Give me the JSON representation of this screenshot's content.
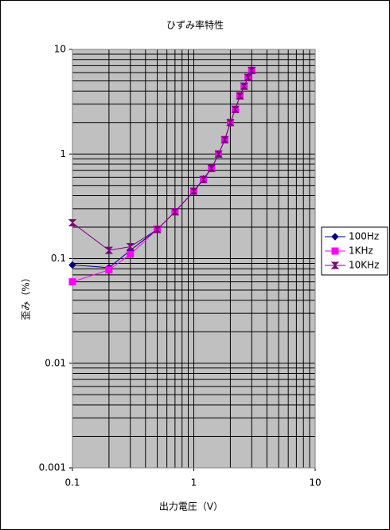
{
  "chart_data": {
    "type": "line",
    "title": "ひずみ率特性",
    "xlabel": "出力電圧（V）",
    "ylabel": "歪み（%）",
    "x": [
      0.1,
      0.2,
      0.3,
      0.5,
      0.7,
      1.0,
      1.2,
      1.4,
      1.6,
      1.8,
      2.0,
      2.2,
      2.4,
      2.6,
      2.8,
      3.0
    ],
    "series": [
      {
        "name": "100Hz",
        "color": "#000080",
        "marker": "diamond",
        "values": [
          0.087,
          0.082,
          0.12,
          0.19,
          0.28,
          0.44,
          0.58,
          0.73,
          1.0,
          1.37,
          2.0,
          2.67,
          3.6,
          4.45,
          5.4,
          6.3
        ]
      },
      {
        "name": "1KHz",
        "color": "#ff00ff",
        "marker": "square",
        "values": [
          0.06,
          0.078,
          0.11,
          0.19,
          0.28,
          0.44,
          0.57,
          0.73,
          1.0,
          1.37,
          2.0,
          2.67,
          3.6,
          4.45,
          5.4,
          6.3
        ]
      },
      {
        "name": "10KHz",
        "color": "#800080",
        "marker": "hourglass",
        "values": [
          0.22,
          0.12,
          0.13,
          0.19,
          0.28,
          0.44,
          0.57,
          0.73,
          1.0,
          1.37,
          2.0,
          2.67,
          3.6,
          4.45,
          5.4,
          6.3
        ]
      }
    ],
    "xlim": [
      0.1,
      10
    ],
    "xticks": [
      0.1,
      1,
      10
    ],
    "ylim": [
      0.001,
      10
    ],
    "yticks": [
      0.001,
      0.01,
      0.1,
      1,
      10
    ],
    "xscale": "log",
    "yscale": "log",
    "grid": true,
    "minor_grid": true,
    "plot_background": "#c0c0c0",
    "legend": "right"
  }
}
